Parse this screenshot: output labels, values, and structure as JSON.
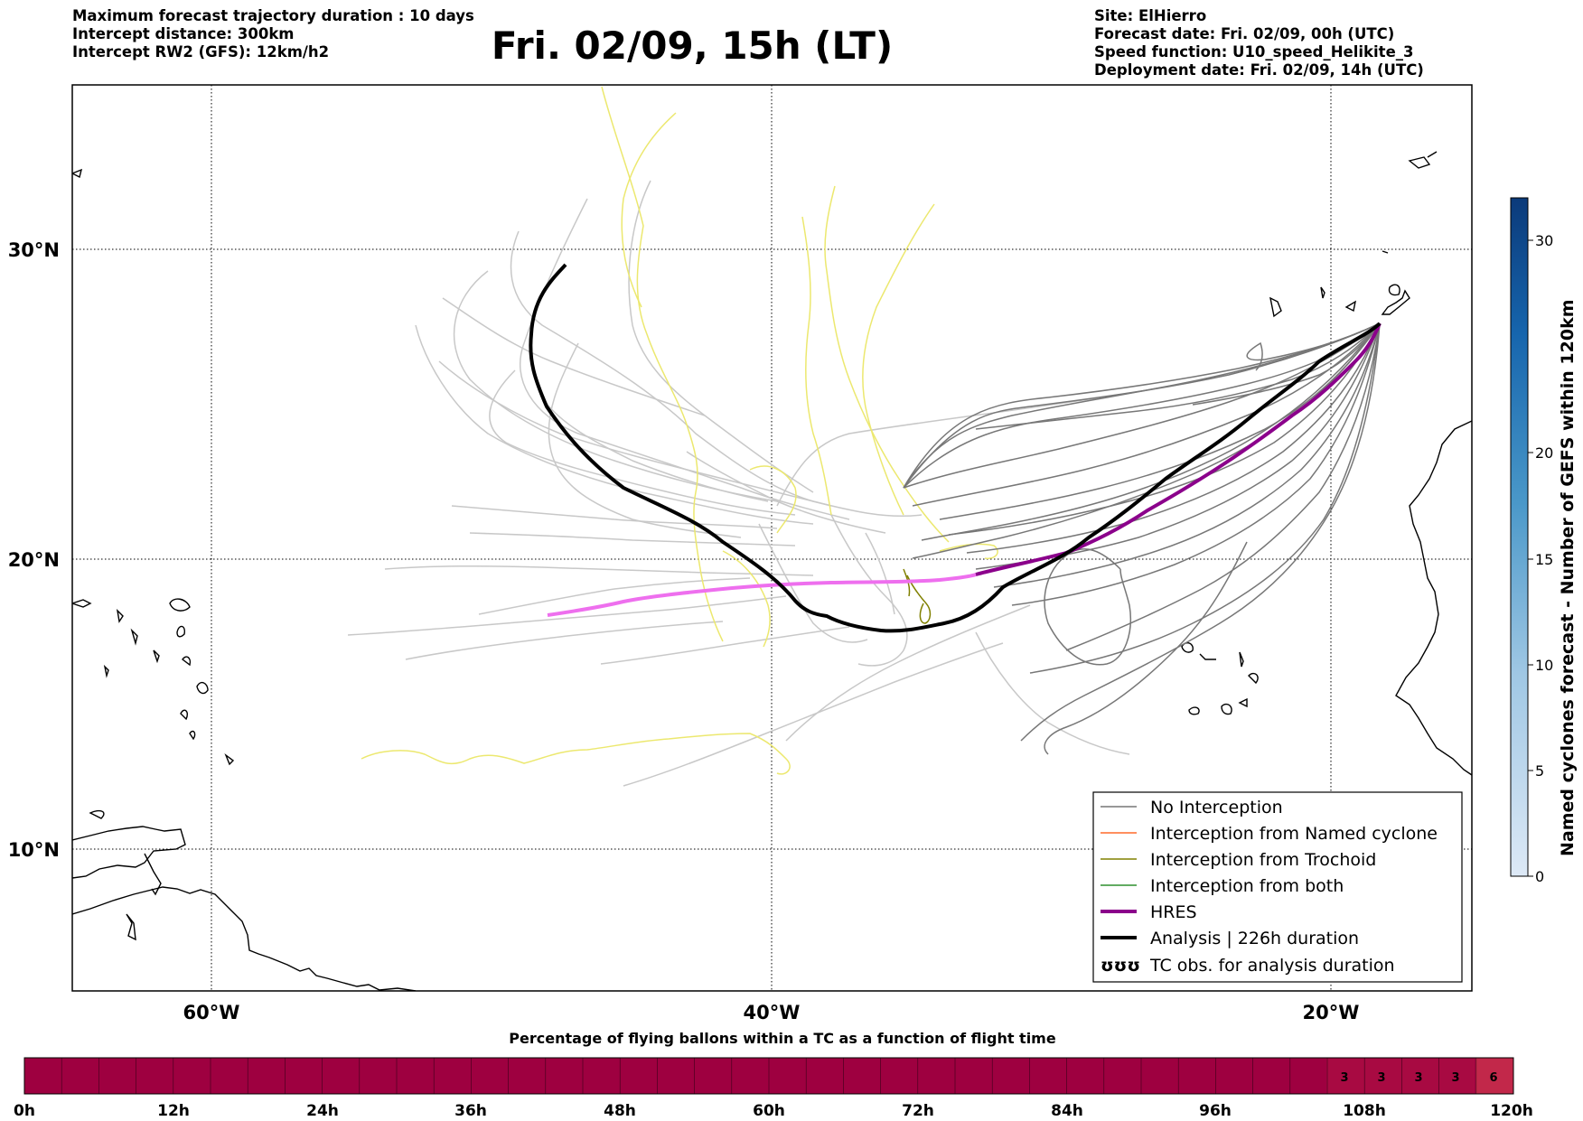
{
  "header": {
    "left": [
      "Maximum forecast trajectory duration : 10 days",
      "Intercept distance: 300km",
      "Intercept RW2 (GFS):  12km/h2"
    ],
    "title": "Fri. 02/09, 15h (LT)",
    "right": [
      "Site: ElHierro",
      "Forecast date: Fri. 02/09, 00h (UTC)",
      "Speed function: U10_speed_Helikite_3",
      "Deployment date: Fri. 02/09, 14h (UTC)"
    ]
  },
  "map": {
    "lon_labels": [
      "60°W",
      "40°W",
      "20°W"
    ],
    "lat_labels": [
      "30°N",
      "20°N",
      "10°N"
    ],
    "lon_range": [
      -65,
      -15
    ],
    "lat_range": [
      4.5,
      33.8
    ],
    "gridlines": true,
    "colors": {
      "no_interception": "#777777",
      "no_interception_far": "#c8c8c8",
      "named_cyclone": "#ff6a2a",
      "trochoid": "#808000",
      "both": "#2f8f2f",
      "hres": "#8b008b",
      "hres_far": "#ee6fee",
      "analysis": "#000000",
      "trochoid_far": "#ece86f"
    }
  },
  "legend": {
    "items": [
      {
        "label": "No Interception",
        "color": "#777777"
      },
      {
        "label": "Interception from Named cyclone",
        "color": "#ff6a2a"
      },
      {
        "label": "Interception from Trochoid",
        "color": "#808000"
      },
      {
        "label": "Interception from both",
        "color": "#2f8f2f"
      },
      {
        "label": "HRES",
        "color": "#8b008b"
      },
      {
        "label": "Analysis | 226h duration",
        "color": "#000000"
      },
      {
        "label": "TC obs. for analysis duration",
        "symbol": "ʊʊʊ"
      }
    ]
  },
  "colorbar_right": {
    "label": "Named cyclones forecast - Number of GEFS within 120km",
    "ticks": [
      "0",
      "5",
      "10",
      "15",
      "20",
      "30"
    ],
    "range": [
      0,
      32
    ]
  },
  "colorbar_bottom": {
    "title": "Percentage of flying ballons within a TC as a function of flight time",
    "ticks": [
      "0h",
      "12h",
      "24h",
      "36h",
      "48h",
      "60h",
      "72h",
      "84h",
      "96h",
      "108h",
      "120h"
    ],
    "cells": [
      "3",
      "3",
      "3",
      "3",
      "6"
    ],
    "base_color": "#9e0040"
  }
}
